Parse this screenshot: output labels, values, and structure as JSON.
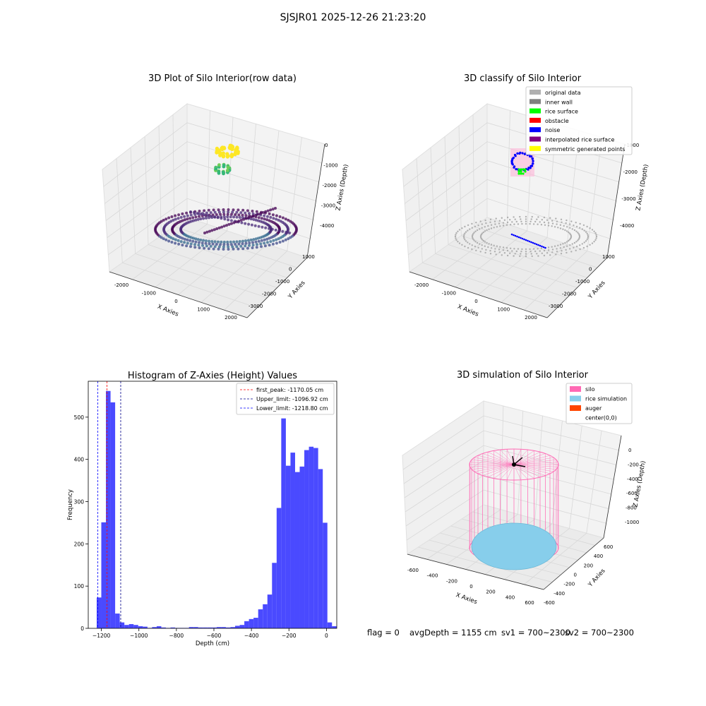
{
  "figure": {
    "suptitle": "SJSJR01 2025-12-26 21:23:20"
  },
  "status": {
    "flag": "flag = 0",
    "avg_depth": "avgDepth = 1155 cm",
    "sv1": "sv1 = 700~2300",
    "sv2": "sv2 = 700~2300"
  },
  "chart_data": [
    {
      "type": "scatter",
      "title": "3D Plot of Silo Interior(row data)",
      "xlabel": "X Axies",
      "ylabel": "Y Axies",
      "zlabel": "Z Axies (Depth)",
      "x_ticks": [
        "-2000",
        "-1000",
        "0",
        "1000",
        "2000"
      ],
      "y_ticks": [
        "-3000",
        "-2000",
        "-1000",
        "0",
        "1000"
      ],
      "z_ticks": [
        "-4000",
        "-3000",
        "-2000",
        "-1000",
        "0"
      ],
      "colormap": "viridis"
    },
    {
      "type": "scatter",
      "title": "3D classify of Silo Interior",
      "xlabel": "X Axies",
      "ylabel": "Y Axies",
      "zlabel": "Z Axies (Depth)",
      "x_ticks": [
        "-2000",
        "-1000",
        "0",
        "1000",
        "2000"
      ],
      "y_ticks": [
        "-3000",
        "-2000",
        "-1000",
        "0",
        "1000"
      ],
      "z_ticks": [
        "-4000",
        "-3000",
        "-2000",
        "-1000"
      ],
      "legend_position": "top-right",
      "legend": [
        {
          "label": "original data",
          "color": "#b0b0b0"
        },
        {
          "label": "inner wall",
          "color": "#808080"
        },
        {
          "label": "rice surface",
          "color": "#00ff00"
        },
        {
          "label": "obstacle",
          "color": "#ff0000"
        },
        {
          "label": "noise",
          "color": "#0000ff"
        },
        {
          "label": "interpolated rice surface",
          "color": "#800080"
        },
        {
          "label": "symmetric generated points",
          "color": "#ffff00"
        }
      ]
    },
    {
      "type": "bar",
      "title": "Histogram of Z-Axies (Height) Values",
      "xlabel": "Depth (cm)",
      "ylabel": "Frequency",
      "xlim": [
        -1270,
        55
      ],
      "ylim": [
        0,
        585
      ],
      "x_ticks": [
        -1200,
        -1000,
        -800,
        -600,
        -400,
        -200,
        0
      ],
      "y_ticks": [
        0,
        100,
        200,
        300,
        400,
        500
      ],
      "bin_start": -1225,
      "bin_width": 24.6,
      "values": [
        73,
        251,
        562,
        535,
        35,
        14,
        8,
        10,
        8,
        5,
        4,
        1,
        3,
        5,
        2,
        1,
        2,
        1,
        1,
        1,
        3,
        3,
        2,
        2,
        2,
        2,
        3,
        3,
        2,
        3,
        6,
        8,
        17,
        22,
        25,
        45,
        57,
        80,
        155,
        285,
        497,
        385,
        416,
        370,
        383,
        422,
        430,
        427,
        377,
        250,
        14,
        5
      ],
      "bar_color": "#4040ff",
      "legend_position": "top-right",
      "vlines": [
        {
          "label": "first_peak: -1170.05 cm",
          "x": -1170.05,
          "color": "#ff0000"
        },
        {
          "label": "Upper_limit: -1096.92 cm",
          "x": -1096.92,
          "color": "#00008b"
        },
        {
          "label": "Lower_limit: -1218.80 cm",
          "x": -1218.8,
          "color": "#0000ff"
        }
      ]
    },
    {
      "type": "scatter",
      "title": "3D simulation of Silo Interior",
      "xlabel": "X Axies",
      "ylabel": "Y Axies",
      "zlabel": "Z Axies (Depth)",
      "x_ticks": [
        "-600",
        "-400",
        "-200",
        "0",
        "200",
        "400",
        "600"
      ],
      "y_ticks": [
        "-600",
        "-400",
        "-200",
        "0",
        "200",
        "400",
        "600"
      ],
      "z_ticks": [
        "-1000",
        "-800",
        "-600",
        "-400",
        "-200",
        "0"
      ],
      "legend_position": "top-right",
      "legend": [
        {
          "label": "silo",
          "color": "#ff69b4"
        },
        {
          "label": "rice simulation",
          "color": "#87ceeb"
        },
        {
          "label": "auger",
          "color": "#ff4500"
        },
        {
          "label": "center(0,0)",
          "color": "#ffffff"
        }
      ]
    }
  ]
}
